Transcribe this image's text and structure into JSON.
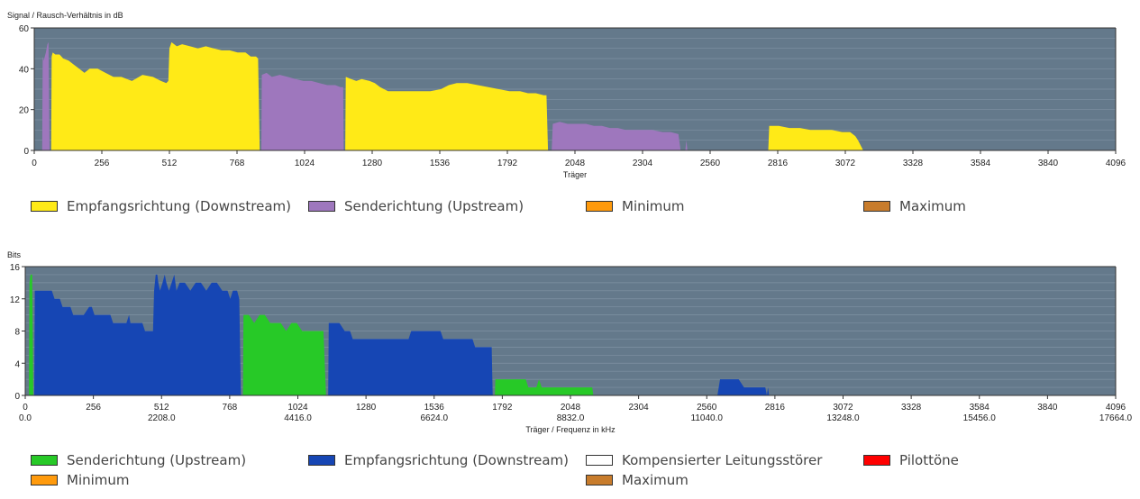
{
  "colors": {
    "plot_bg": "#64798b",
    "grid": "#7f92a3",
    "snr_downstream": "#ffea17",
    "snr_upstream": "#9e77bd",
    "bits_upstream": "#27c927",
    "bits_downstream": "#1646b4",
    "kompensiert": "#ffffff",
    "pilot": "#ff0000",
    "minimum": "#ff9a0c",
    "maximum": "#c87c2c"
  },
  "chart_data": [
    {
      "type": "area",
      "ylabel": "Signal / Rausch-Verhältnis in dB",
      "xlabel": "Träger",
      "xlim": [
        0,
        4096
      ],
      "ylim": [
        0,
        60
      ],
      "grid": true,
      "x_ticks": [
        "0",
        "256",
        "512",
        "768",
        "1024",
        "1280",
        "1536",
        "1792",
        "2048",
        "2304",
        "2560",
        "2816",
        "3072",
        "3328",
        "3584",
        "3840",
        "4096"
      ],
      "y_ticks": [
        "0",
        "20",
        "40",
        "60"
      ],
      "legend": [
        {
          "name": "Empfangsrichtung (Downstream)",
          "color": "#ffea17"
        },
        {
          "name": "Senderichtung (Upstream)",
          "color": "#9e77bd"
        },
        {
          "name": "Minimum",
          "color": "#ff9a0c"
        },
        {
          "name": "Maximum",
          "color": "#c87c2c"
        }
      ],
      "series": [
        {
          "color": "#9e77bd",
          "points": [
            [
              30,
              0
            ],
            [
              32,
              46
            ],
            [
              36,
              44
            ],
            [
              44,
              48
            ],
            [
              50,
              52
            ],
            [
              54,
              53
            ],
            [
              58,
              0
            ]
          ]
        },
        {
          "color": "#ffea17",
          "points": [
            [
              64,
              0
            ],
            [
              66,
              46
            ],
            [
              70,
              48
            ],
            [
              80,
              47
            ],
            [
              96,
              47
            ],
            [
              110,
              45
            ],
            [
              130,
              44
            ],
            [
              150,
              42
            ],
            [
              170,
              40
            ],
            [
              190,
              38
            ],
            [
              210,
              40
            ],
            [
              240,
              40
            ],
            [
              270,
              38
            ],
            [
              300,
              36
            ],
            [
              330,
              36
            ],
            [
              370,
              34
            ],
            [
              410,
              37
            ],
            [
              450,
              36
            ],
            [
              480,
              34
            ],
            [
              500,
              33
            ],
            [
              508,
              34
            ],
            [
              512,
              50
            ],
            [
              520,
              53
            ],
            [
              540,
              51
            ],
            [
              560,
              52
            ],
            [
              590,
              51
            ],
            [
              620,
              50
            ],
            [
              650,
              51
            ],
            [
              680,
              50
            ],
            [
              710,
              49
            ],
            [
              740,
              49
            ],
            [
              770,
              48
            ],
            [
              800,
              48
            ],
            [
              820,
              46
            ],
            [
              840,
              46
            ],
            [
              848,
              45
            ],
            [
              854,
              0
            ]
          ]
        },
        {
          "color": "#9e77bd",
          "points": [
            [
              860,
              0
            ],
            [
              862,
              37
            ],
            [
              880,
              38
            ],
            [
              900,
              36
            ],
            [
              930,
              37
            ],
            [
              960,
              36
            ],
            [
              990,
              35
            ],
            [
              1020,
              34
            ],
            [
              1050,
              34
            ],
            [
              1080,
              33
            ],
            [
              1110,
              32
            ],
            [
              1140,
              32
            ],
            [
              1160,
              31
            ],
            [
              1170,
              31
            ],
            [
              1172,
              0
            ]
          ]
        },
        {
          "color": "#ffea17",
          "points": [
            [
              1178,
              0
            ],
            [
              1180,
              36
            ],
            [
              1200,
              35
            ],
            [
              1220,
              34
            ],
            [
              1240,
              35
            ],
            [
              1270,
              34
            ],
            [
              1290,
              33
            ],
            [
              1310,
              31
            ],
            [
              1340,
              29
            ],
            [
              1380,
              29
            ],
            [
              1420,
              29
            ],
            [
              1460,
              29
            ],
            [
              1500,
              29
            ],
            [
              1540,
              30
            ],
            [
              1570,
              32
            ],
            [
              1600,
              33
            ],
            [
              1640,
              33
            ],
            [
              1680,
              32
            ],
            [
              1720,
              31
            ],
            [
              1760,
              30
            ],
            [
              1800,
              29
            ],
            [
              1840,
              29
            ],
            [
              1870,
              28
            ],
            [
              1900,
              28
            ],
            [
              1930,
              27
            ],
            [
              1940,
              27
            ],
            [
              1946,
              0
            ]
          ]
        },
        {
          "color": "#9e77bd",
          "points": [
            [
              1960,
              0
            ],
            [
              1964,
              13
            ],
            [
              1990,
              14
            ],
            [
              2020,
              13
            ],
            [
              2050,
              13
            ],
            [
              2090,
              13
            ],
            [
              2120,
              12
            ],
            [
              2150,
              12
            ],
            [
              2180,
              11
            ],
            [
              2210,
              11
            ],
            [
              2240,
              10
            ],
            [
              2280,
              10
            ],
            [
              2310,
              10
            ],
            [
              2340,
              10
            ],
            [
              2380,
              9
            ],
            [
              2410,
              9
            ],
            [
              2440,
              8
            ],
            [
              2448,
              0
            ]
          ]
        },
        {
          "color": "#9e77bd",
          "points": [
            [
              2466,
              0
            ],
            [
              2470,
              5
            ],
            [
              2474,
              0
            ]
          ]
        },
        {
          "color": "#ffea17",
          "points": [
            [
              2780,
              0
            ],
            [
              2784,
              12
            ],
            [
              2820,
              12
            ],
            [
              2860,
              11
            ],
            [
              2900,
              11
            ],
            [
              2940,
              10
            ],
            [
              2980,
              10
            ],
            [
              3020,
              10
            ],
            [
              3060,
              9
            ],
            [
              3090,
              9
            ],
            [
              3110,
              7
            ],
            [
              3120,
              5
            ],
            [
              3140,
              0
            ]
          ]
        }
      ]
    },
    {
      "type": "area",
      "ylabel": "Bits",
      "xlabel": "Träger / Frequenz in kHz",
      "xlim": [
        0,
        4096
      ],
      "ylim": [
        0,
        16
      ],
      "grid": true,
      "x_ticks": [
        "0",
        "256",
        "512",
        "768",
        "1024",
        "1280",
        "1536",
        "1792",
        "2048",
        "2304",
        "2560",
        "2816",
        "3072",
        "3328",
        "3584",
        "3840",
        "4096"
      ],
      "x_freq_ticks": [
        "0.0",
        "2208.0",
        "4416.0",
        "6624.0",
        "8832.0",
        "11040.0",
        "13248.0",
        "15456.0",
        "17664.0"
      ],
      "y_ticks": [
        "0",
        "4",
        "8",
        "12",
        "16"
      ],
      "legend": [
        {
          "name": "Senderichtung (Upstream)",
          "color": "#27c927"
        },
        {
          "name": "Empfangsrichtung (Downstream)",
          "color": "#1646b4"
        },
        {
          "name": "Kompensierter Leitungsstörer",
          "color": "#ffffff"
        },
        {
          "name": "Pilottöne",
          "color": "#ff0000"
        },
        {
          "name": "Minimum",
          "color": "#ff9a0c"
        },
        {
          "name": "Maximum",
          "color": "#c87c2c"
        }
      ],
      "series": [
        {
          "color": "#27c927",
          "points": [
            [
              14,
              0
            ],
            [
              16,
              14
            ],
            [
              20,
              15
            ],
            [
              26,
              15
            ],
            [
              30,
              0
            ]
          ]
        },
        {
          "color": "#1646b4",
          "points": [
            [
              34,
              0
            ],
            [
              36,
              13
            ],
            [
              60,
              13
            ],
            [
              100,
              13
            ],
            [
              110,
              12
            ],
            [
              130,
              12
            ],
            [
              140,
              11
            ],
            [
              170,
              11
            ],
            [
              180,
              10
            ],
            [
              220,
              10
            ],
            [
              240,
              11
            ],
            [
              250,
              11
            ],
            [
              260,
              10
            ],
            [
              300,
              10
            ],
            [
              320,
              10
            ],
            [
              330,
              9
            ],
            [
              380,
              9
            ],
            [
              390,
              10
            ],
            [
              395,
              9
            ],
            [
              420,
              9
            ],
            [
              440,
              9
            ],
            [
              450,
              8
            ],
            [
              470,
              8
            ],
            [
              480,
              8
            ],
            [
              484,
              13
            ],
            [
              490,
              15
            ],
            [
              496,
              15
            ],
            [
              500,
              14
            ],
            [
              506,
              13
            ],
            [
              516,
              14
            ],
            [
              524,
              15
            ],
            [
              530,
              14
            ],
            [
              540,
              13
            ],
            [
              550,
              14
            ],
            [
              560,
              15
            ],
            [
              568,
              13
            ],
            [
              580,
              14
            ],
            [
              600,
              14
            ],
            [
              620,
              13
            ],
            [
              640,
              14
            ],
            [
              660,
              14
            ],
            [
              680,
              13
            ],
            [
              700,
              14
            ],
            [
              720,
              14
            ],
            [
              740,
              13
            ],
            [
              760,
              13
            ],
            [
              770,
              12
            ],
            [
              780,
              13
            ],
            [
              796,
              13
            ],
            [
              804,
              12
            ],
            [
              810,
              0
            ]
          ]
        },
        {
          "color": "#27c927",
          "points": [
            [
              818,
              0
            ],
            [
              820,
              10
            ],
            [
              840,
              10
            ],
            [
              860,
              9
            ],
            [
              880,
              10
            ],
            [
              900,
              10
            ],
            [
              920,
              9
            ],
            [
              960,
              9
            ],
            [
              980,
              8
            ],
            [
              1000,
              9
            ],
            [
              1020,
              9
            ],
            [
              1040,
              8
            ],
            [
              1080,
              8
            ],
            [
              1100,
              8
            ],
            [
              1120,
              8
            ],
            [
              1130,
              0
            ]
          ]
        },
        {
          "color": "#1646b4",
          "points": [
            [
              1138,
              0
            ],
            [
              1140,
              9
            ],
            [
              1180,
              9
            ],
            [
              1200,
              8
            ],
            [
              1220,
              8
            ],
            [
              1230,
              7
            ],
            [
              1300,
              7
            ],
            [
              1400,
              7
            ],
            [
              1440,
              7
            ],
            [
              1450,
              8
            ],
            [
              1500,
              8
            ],
            [
              1560,
              8
            ],
            [
              1570,
              7
            ],
            [
              1640,
              7
            ],
            [
              1680,
              7
            ],
            [
              1690,
              6
            ],
            [
              1740,
              6
            ],
            [
              1752,
              6
            ],
            [
              1756,
              0
            ]
          ]
        },
        {
          "color": "#27c927",
          "points": [
            [
              1764,
              0
            ],
            [
              1766,
              2
            ],
            [
              1800,
              2
            ],
            [
              1840,
              2
            ],
            [
              1880,
              2
            ],
            [
              1890,
              1
            ],
            [
              1920,
              1
            ],
            [
              1930,
              2
            ],
            [
              1940,
              1
            ],
            [
              1980,
              1
            ],
            [
              2040,
              1
            ],
            [
              2100,
              1
            ],
            [
              2130,
              1
            ],
            [
              2134,
              0
            ]
          ]
        },
        {
          "color": "#1646b4",
          "points": [
            [
              2600,
              0
            ],
            [
              2610,
              2
            ],
            [
              2640,
              2
            ],
            [
              2680,
              2
            ],
            [
              2700,
              1
            ],
            [
              2740,
              1
            ],
            [
              2780,
              1
            ],
            [
              2786,
              0
            ],
            [
              2790,
              1
            ],
            [
              2794,
              0
            ]
          ]
        }
      ]
    }
  ]
}
